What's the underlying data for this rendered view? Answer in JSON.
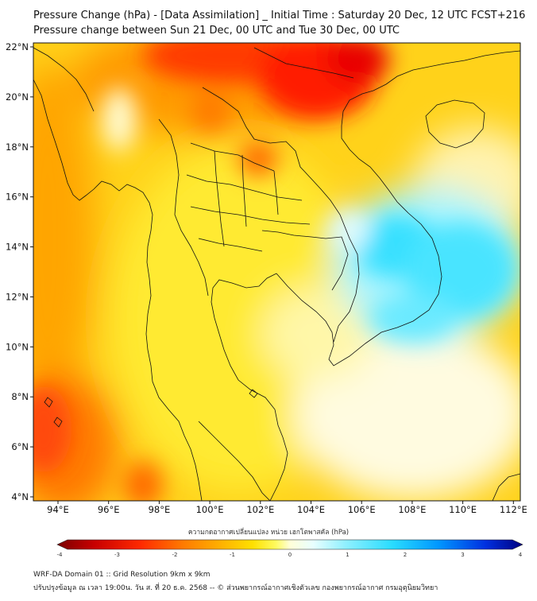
{
  "title_line1": "Pressure Change (hPa) - [Data Assimilation] _ Initial Time : Saturday 20 Dec, 12 UTC FCST+216",
  "title_line2": "Pressure change between Sun 21 Dec, 00 UTC and Tue 30 Dec, 00 UTC",
  "lat_ticks": [
    "22°N",
    "20°N",
    "18°N",
    "16°N",
    "14°N",
    "12°N",
    "10°N",
    "8°N",
    "6°N",
    "4°N"
  ],
  "lon_ticks": [
    "94°E",
    "96°E",
    "98°E",
    "100°E",
    "102°E",
    "104°E",
    "106°E",
    "108°E",
    "110°E",
    "112°E"
  ],
  "colorbar": {
    "title": "ความกดอากาศเปลี่ยนแปลง หน่วย เฮกโตพาสคัล (hPa)",
    "ticks": [
      "-4",
      "-3",
      "-2",
      "-1",
      "0",
      "1",
      "2",
      "3",
      "4"
    ],
    "min": -4,
    "max": 4,
    "colors": [
      "#7a0000",
      "#c80000",
      "#ff2a00",
      "#ff7a00",
      "#ffb000",
      "#ffe000",
      "#fffb60",
      "#ffffd8",
      "#e8ffff",
      "#8ff0ff",
      "#29dcff",
      "#0096ff",
      "#0030e0",
      "#000080"
    ]
  },
  "footer_line1": "WRF-DA Domain 01 :: Grid Resolution 9km x 9km",
  "footer_line2": "ปรับปรุงข้อมูล ณ เวลา 19:00น. วัน ส. ที่ 20 ธ.ค. 2568 -- © ส่วนพยากรณ์อากาศเชิงตัวเลข กองพยากรณ์อากาศ กรมอุตุนิยมวิทยา"
}
